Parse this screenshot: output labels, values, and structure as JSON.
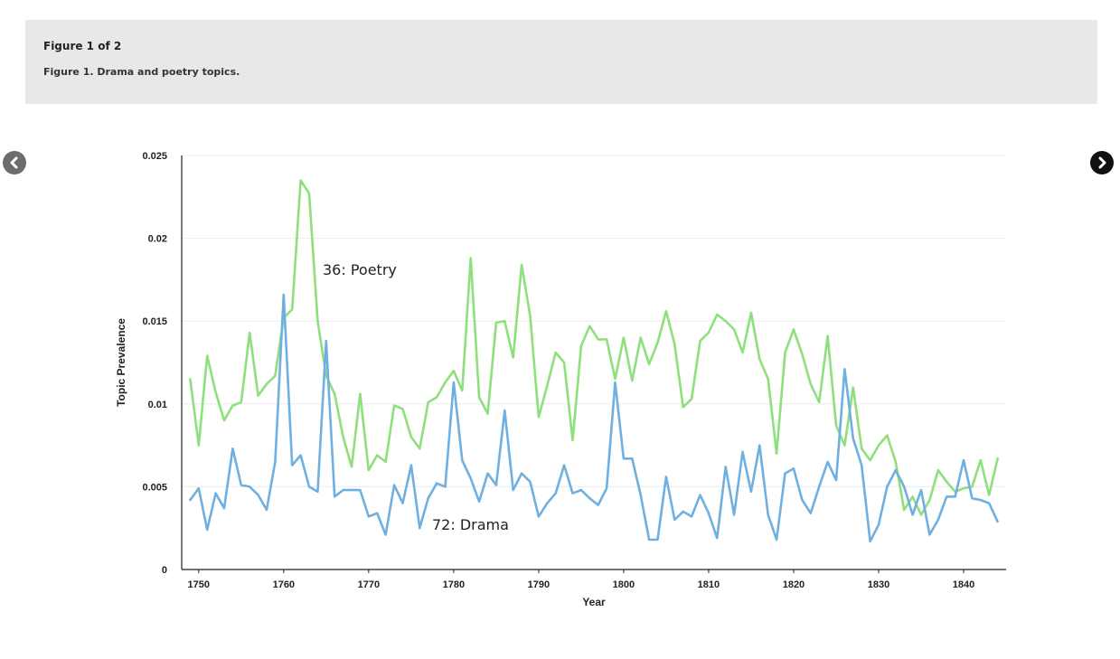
{
  "figure": {
    "counter": "Figure 1 of 2",
    "caption": "Figure 1. Drama and poetry topics."
  },
  "nav": {
    "prev_icon": "chevron-left-icon",
    "next_icon": "chevron-right-icon"
  },
  "chart_data": {
    "type": "line",
    "title": "",
    "xlabel": "Year",
    "ylabel": "Topic Prevalence",
    "xlim": [
      1748,
      1845
    ],
    "ylim": [
      0,
      0.025
    ],
    "x_ticks": [
      "1750",
      "1760",
      "1770",
      "1780",
      "1790",
      "1800",
      "1810",
      "1820",
      "1830",
      "1840"
    ],
    "y_ticks": [
      "0",
      "0.005",
      "0.01",
      "0.015",
      "0.02",
      "0.025"
    ],
    "grid": true,
    "x": [
      1749,
      1750,
      1751,
      1752,
      1753,
      1754,
      1755,
      1756,
      1757,
      1758,
      1759,
      1760,
      1761,
      1762,
      1763,
      1764,
      1765,
      1766,
      1767,
      1768,
      1769,
      1770,
      1771,
      1772,
      1773,
      1774,
      1775,
      1776,
      1777,
      1778,
      1779,
      1780,
      1781,
      1782,
      1783,
      1784,
      1785,
      1786,
      1787,
      1788,
      1789,
      1790,
      1791,
      1792,
      1793,
      1794,
      1795,
      1796,
      1797,
      1798,
      1799,
      1800,
      1801,
      1802,
      1803,
      1804,
      1805,
      1806,
      1807,
      1808,
      1809,
      1810,
      1811,
      1812,
      1813,
      1814,
      1815,
      1816,
      1817,
      1818,
      1819,
      1820,
      1821,
      1822,
      1823,
      1824,
      1825,
      1826,
      1827,
      1828,
      1829,
      1830,
      1831,
      1832,
      1833,
      1834,
      1835,
      1836,
      1837,
      1838,
      1839,
      1840,
      1841,
      1842,
      1843,
      1844
    ],
    "series": [
      {
        "name": "36: Poetry",
        "color": "#8ee07d",
        "values": [
          0.0115,
          0.0075,
          0.0129,
          0.0107,
          0.009,
          0.0099,
          0.0101,
          0.0143,
          0.0105,
          0.0112,
          0.0117,
          0.0152,
          0.0157,
          0.0235,
          0.0227,
          0.015,
          0.0117,
          0.0106,
          0.008,
          0.0062,
          0.0106,
          0.006,
          0.0069,
          0.0065,
          0.0099,
          0.0097,
          0.008,
          0.0073,
          0.0101,
          0.0104,
          0.0113,
          0.012,
          0.0108,
          0.0188,
          0.0104,
          0.0094,
          0.0149,
          0.015,
          0.0128,
          0.0184,
          0.0153,
          0.0092,
          0.0111,
          0.0131,
          0.0125,
          0.0078,
          0.0135,
          0.0147,
          0.0139,
          0.0139,
          0.0115,
          0.014,
          0.0114,
          0.014,
          0.0124,
          0.0137,
          0.0156,
          0.0136,
          0.0098,
          0.0103,
          0.0138,
          0.0143,
          0.0154,
          0.015,
          0.0145,
          0.0131,
          0.0155,
          0.0127,
          0.0115,
          0.007,
          0.0131,
          0.0145,
          0.013,
          0.0112,
          0.0101,
          0.0141,
          0.0087,
          0.0075,
          0.011,
          0.0073,
          0.0066,
          0.0075,
          0.0081,
          0.0065,
          0.0036,
          0.0044,
          0.0033,
          0.0042,
          0.006,
          0.0053,
          0.0047,
          0.0049,
          0.005,
          0.0066,
          0.0045,
          0.0067
        ]
      },
      {
        "name": "72: Drama",
        "color": "#6fb0e0",
        "values": [
          0.0042,
          0.0049,
          0.0024,
          0.0046,
          0.0037,
          0.0073,
          0.0051,
          0.005,
          0.0045,
          0.0036,
          0.0065,
          0.0166,
          0.0063,
          0.0069,
          0.005,
          0.0047,
          0.0138,
          0.0044,
          0.0048,
          0.0048,
          0.0048,
          0.0032,
          0.0034,
          0.0021,
          0.0051,
          0.004,
          0.0063,
          0.0025,
          0.0043,
          0.0052,
          0.005,
          0.0113,
          0.0066,
          0.0055,
          0.0041,
          0.0058,
          0.0051,
          0.0096,
          0.0048,
          0.0058,
          0.0053,
          0.0032,
          0.004,
          0.0046,
          0.0063,
          0.0046,
          0.0048,
          0.0043,
          0.0039,
          0.0049,
          0.0113,
          0.0067,
          0.0067,
          0.0045,
          0.0018,
          0.0018,
          0.0056,
          0.003,
          0.0035,
          0.0032,
          0.0045,
          0.0034,
          0.0019,
          0.0062,
          0.0033,
          0.0071,
          0.0047,
          0.0075,
          0.0033,
          0.0018,
          0.0058,
          0.0061,
          0.0042,
          0.0034,
          0.005,
          0.0065,
          0.0054,
          0.0121,
          0.0079,
          0.0063,
          0.0017,
          0.0027,
          0.005,
          0.006,
          0.005,
          0.0033,
          0.0048,
          0.0021,
          0.003,
          0.0044,
          0.0044,
          0.0066,
          0.0043,
          0.0042,
          0.004,
          0.0029
        ]
      }
    ]
  }
}
